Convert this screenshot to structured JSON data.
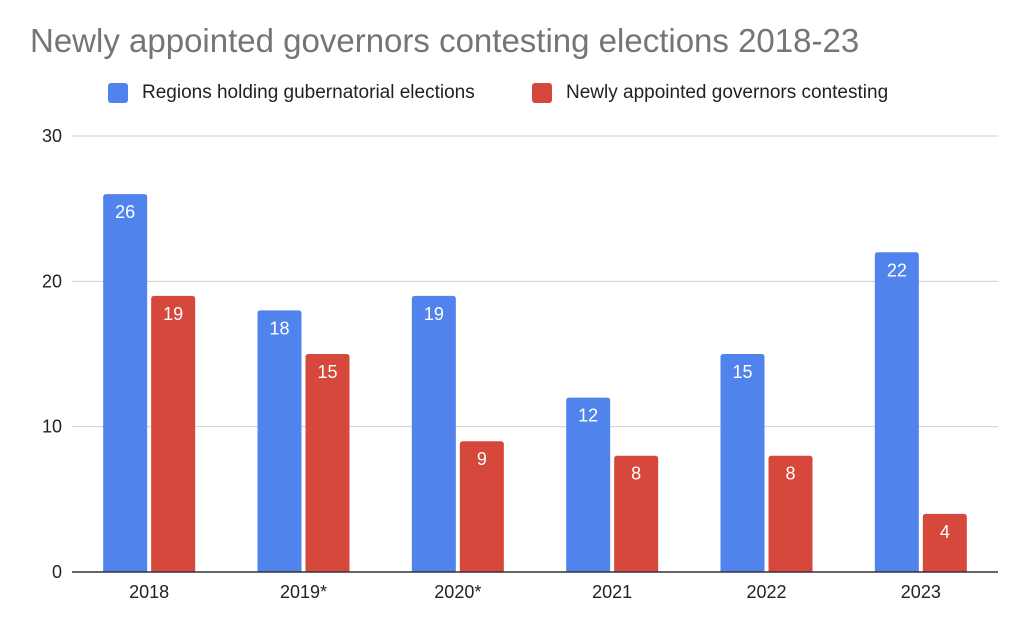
{
  "chart_data": {
    "type": "bar",
    "title": "Newly appointed governors contesting elections 2018-23",
    "xlabel": "",
    "ylabel": "",
    "categories": [
      "2018",
      "2019*",
      "2020*",
      "2021",
      "2022",
      "2023"
    ],
    "series": [
      {
        "name": "Regions holding gubernatorial elections",
        "color": "#5083EC",
        "values": [
          26,
          18,
          19,
          12,
          15,
          22
        ]
      },
      {
        "name": "Newly appointed governors contesting",
        "color": "#D5483B",
        "values": [
          19,
          15,
          9,
          8,
          8,
          4
        ]
      }
    ],
    "ylim": [
      0,
      30
    ],
    "yticks": [
      0,
      10,
      20,
      30
    ],
    "grid": true,
    "legend_position": "top",
    "data_labels": "inside-top"
  }
}
